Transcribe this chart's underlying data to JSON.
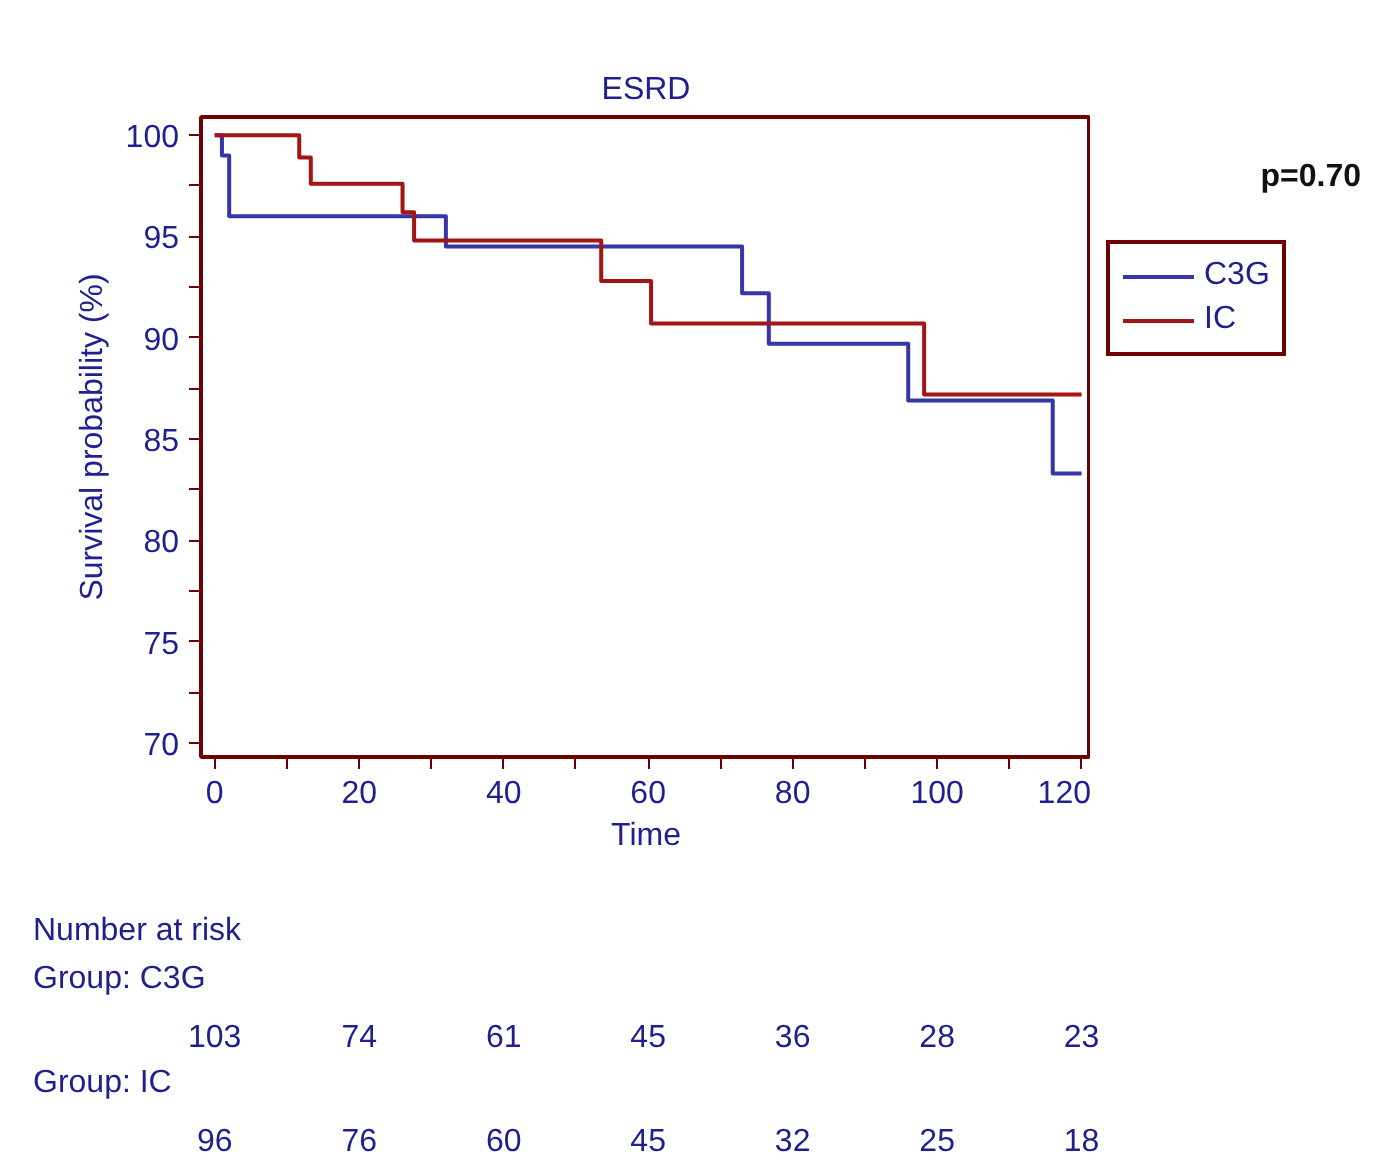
{
  "chart_data": {
    "type": "step",
    "title": "ESRD",
    "xlabel": "Time",
    "ylabel": "Survival probability (%)",
    "series": [
      {
        "name": "C3G",
        "color": "#3636a8",
        "x": [
          0,
          1,
          2,
          32,
          73,
          76.7,
          96,
          116,
          120
        ],
        "values": [
          100,
          99,
          96,
          94.5,
          92.2,
          89.7,
          86.9,
          83.3,
          83.3
        ]
      },
      {
        "name": "IC",
        "color": "#a31515",
        "x": [
          0,
          11.7,
          13.3,
          26,
          27.6,
          53.5,
          60.4,
          98.2,
          120
        ],
        "values": [
          100,
          98.9,
          97.6,
          96.2,
          94.8,
          92.8,
          90.7,
          87.2,
          87.2
        ]
      }
    ],
    "xlim": [
      -1.9,
      121.3
    ],
    "ylim": [
      69.3,
      100.9
    ],
    "xticks": [
      0,
      {
        "value": 10,
        "label": null
      },
      20,
      {
        "value": 30,
        "label": null
      },
      40,
      {
        "value": 50,
        "label": null
      },
      60,
      {
        "value": 70,
        "label": null
      },
      80,
      {
        "value": 90,
        "label": null
      },
      100,
      {
        "value": 110,
        "label": null
      },
      120
    ],
    "yticks": [
      70,
      {
        "value": 72.5,
        "label": null
      },
      75,
      {
        "value": 77.5,
        "label": null
      },
      80,
      {
        "value": 82.5,
        "label": null
      },
      85,
      {
        "value": 87.5,
        "label": null
      },
      90,
      {
        "value": 92.5,
        "label": null
      },
      95,
      {
        "value": 97.5,
        "label": null
      },
      100
    ],
    "grid": false,
    "legend": "right",
    "line_style": "solid",
    "annotations": [
      "p=0.70",
      "Number at risk",
      "Group: C3G",
      "103",
      "74",
      "61",
      "45",
      "36",
      "28",
      "23",
      "Group: IC",
      "96",
      "76",
      "60",
      "45",
      "32",
      "25",
      "18"
    ]
  }
}
